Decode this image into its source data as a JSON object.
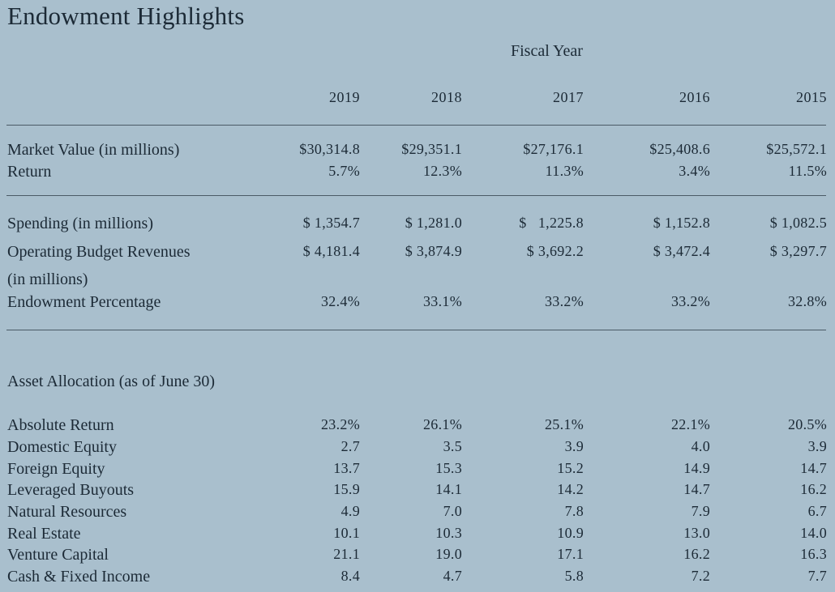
{
  "title": "Endowment Highlights",
  "fiscal_year_label": "Fiscal Year",
  "years": [
    "2019",
    "2018",
    "2017",
    "2016",
    "2015"
  ],
  "section1": {
    "market_value": {
      "label": "Market Value (in millions)",
      "values": [
        "$30,314.8",
        "$29,351.1",
        "$27,176.1",
        "$25,408.6",
        "$25,572.1"
      ]
    },
    "return": {
      "label": "Return",
      "values": [
        "5.7%",
        "12.3%",
        "11.3%",
        "3.4%",
        "11.5%"
      ]
    }
  },
  "section2": {
    "spending": {
      "label": "Spending (in millions)",
      "values": [
        "$ 1,354.7",
        "$ 1,281.0",
        "$   1,225.8",
        "$ 1,152.8",
        "$ 1,082.5"
      ]
    },
    "operating": {
      "label": "Operating Budget Revenues",
      "label2": "(in millions)",
      "values": [
        "$ 4,181.4",
        "$ 3,874.9",
        "$ 3,692.2",
        "$ 3,472.4",
        "$ 3,297.7"
      ]
    },
    "percentage": {
      "label": "Endowment Percentage",
      "values": [
        "32.4%",
        "33.1%",
        "33.2%",
        "33.2%",
        "32.8%"
      ]
    }
  },
  "asset_allocation": {
    "heading": "Asset Allocation (as of June 30)",
    "rows": [
      {
        "label": "Absolute Return",
        "values": [
          "23.2%",
          "26.1%",
          "25.1%",
          "22.1%",
          "20.5%"
        ]
      },
      {
        "label": "Domestic Equity",
        "values": [
          "2.7",
          "3.5",
          "3.9",
          "4.0",
          "3.9"
        ]
      },
      {
        "label": "Foreign Equity",
        "values": [
          "13.7",
          "15.3",
          "15.2",
          "14.9",
          "14.7"
        ]
      },
      {
        "label": "Leveraged Buyouts",
        "values": [
          "15.9",
          "14.1",
          "14.2",
          "14.7",
          "16.2"
        ]
      },
      {
        "label": "Natural Resources",
        "values": [
          "4.9",
          "7.0",
          "7.8",
          "7.9",
          "6.7"
        ]
      },
      {
        "label": "Real Estate",
        "values": [
          "10.1",
          "10.3",
          "10.9",
          "13.0",
          "14.0"
        ]
      },
      {
        "label": "Venture Capital",
        "values": [
          "21.1",
          "19.0",
          "17.1",
          "16.2",
          "16.3"
        ]
      },
      {
        "label": "Cash & Fixed Income",
        "values": [
          "8.4",
          "4.7",
          "5.8",
          "7.2",
          "7.7"
        ]
      }
    ]
  }
}
